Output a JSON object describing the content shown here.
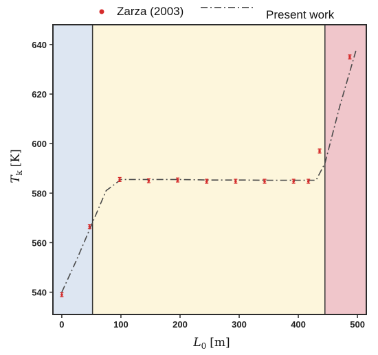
{
  "chart_data": {
    "type": "scatter",
    "xlabel_main": "L",
    "xlabel_sub": "0",
    "xlabel_unit": "[m]",
    "ylabel_main": "T",
    "ylabel_sub": "k",
    "ylabel_unit": "[K]",
    "xlim": [
      -15,
      515
    ],
    "ylim": [
      531,
      648
    ],
    "x_ticks": [
      0,
      100,
      200,
      300,
      400,
      500
    ],
    "x_tick_labels": [
      "0",
      "100",
      "200",
      "300",
      "400",
      "500"
    ],
    "y_ticks": [
      540,
      560,
      580,
      600,
      620,
      640
    ],
    "y_tick_labels": [
      "540",
      "560",
      "580",
      "600",
      "620",
      "640"
    ],
    "grid": false,
    "legend_position": "top",
    "regions": [
      {
        "x_from": -15,
        "x_to": 52,
        "color": "#dde6f2"
      },
      {
        "x_from": 52,
        "x_to": 445,
        "color": "#fdf6dc"
      },
      {
        "x_from": 445,
        "x_to": 515,
        "color": "#f0c6cb"
      }
    ],
    "series": [
      {
        "name": "Zarza (2003)",
        "kind": "scatter-errorbar",
        "color": "#d52b2b",
        "error": 0.8,
        "x": [
          0,
          47,
          98,
          147,
          196,
          245,
          294,
          343,
          392,
          417,
          436,
          487
        ],
        "y": [
          539,
          566.5,
          585.5,
          585,
          585.3,
          584.8,
          584.8,
          584.8,
          584.8,
          584.8,
          597,
          635
        ]
      },
      {
        "name": "Present work",
        "kind": "line",
        "color": "#4a4a4a",
        "dash": "10,4,2,4",
        "x": [
          0,
          25,
          50,
          75,
          100,
          150,
          200,
          250,
          300,
          350,
          400,
          430,
          445,
          470,
          498
        ],
        "y": [
          540,
          553,
          567,
          581,
          585.5,
          585.5,
          585.5,
          585.3,
          585.3,
          585.2,
          585.2,
          585.2,
          592,
          615,
          638
        ]
      }
    ]
  }
}
